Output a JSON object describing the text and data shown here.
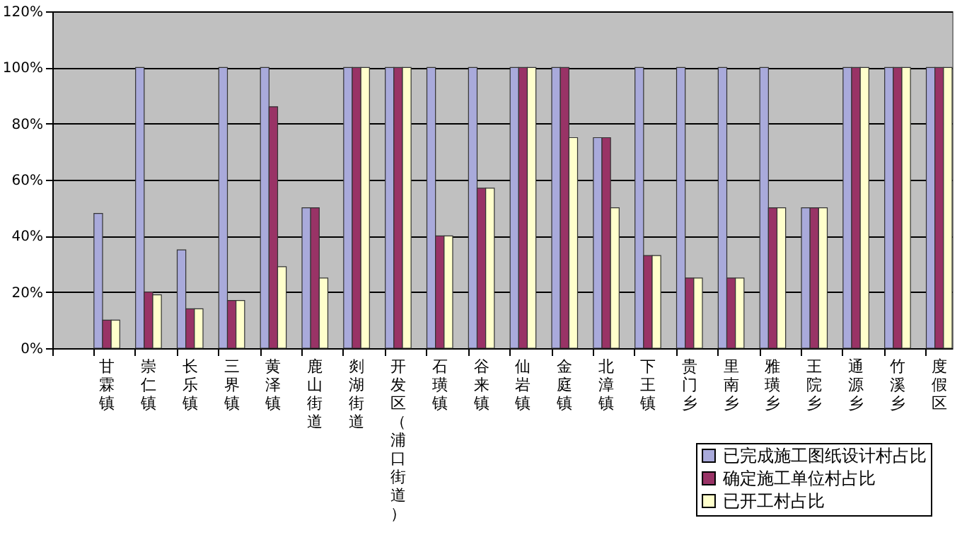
{
  "chart_data": {
    "type": "bar",
    "categories": [
      null,
      "甘霖镇",
      "崇仁镇",
      "长乐镇",
      "三界镇",
      "黄泽镇",
      "鹿山街道",
      "剡湖街道",
      "开发区（浦口街道）",
      "石璜镇",
      "谷来镇",
      "仙岩镇",
      "金庭镇",
      "北漳镇",
      "下王镇",
      "贵门乡",
      "里南乡",
      "雅璜乡",
      "王院乡",
      "通源乡",
      "竹溪乡",
      "度假区"
    ],
    "series": [
      {
        "name": "已完成施工图纸设计村占比",
        "color": "#a9aadb",
        "values": [
          null,
          48,
          100,
          35,
          100,
          100,
          50,
          100,
          100,
          100,
          100,
          100,
          100,
          75,
          100,
          100,
          100,
          100,
          50,
          100,
          100,
          100
        ]
      },
      {
        "name": "确定施工单位村占比",
        "color": "#993366",
        "values": [
          null,
          10,
          20,
          14,
          17,
          86,
          50,
          100,
          100,
          40,
          57,
          100,
          100,
          75,
          33,
          25,
          25,
          50,
          50,
          100,
          100,
          100
        ]
      },
      {
        "name": "已开工村占比",
        "color": "#ffffcc",
        "values": [
          null,
          10,
          19,
          14,
          17,
          29,
          25,
          100,
          100,
          40,
          57,
          100,
          75,
          50,
          33,
          25,
          25,
          50,
          50,
          100,
          100,
          100
        ]
      }
    ],
    "ylim": [
      0,
      120
    ],
    "yticks": [
      {
        "value": 0,
        "label": "0%"
      },
      {
        "value": 20,
        "label": "20%"
      },
      {
        "value": 40,
        "label": "40%"
      },
      {
        "value": 60,
        "label": "60%"
      },
      {
        "value": 80,
        "label": "80%"
      },
      {
        "value": 100,
        "label": "100%"
      },
      {
        "value": 120,
        "label": "120%"
      }
    ],
    "grid": "y",
    "legend": "bottom right"
  }
}
